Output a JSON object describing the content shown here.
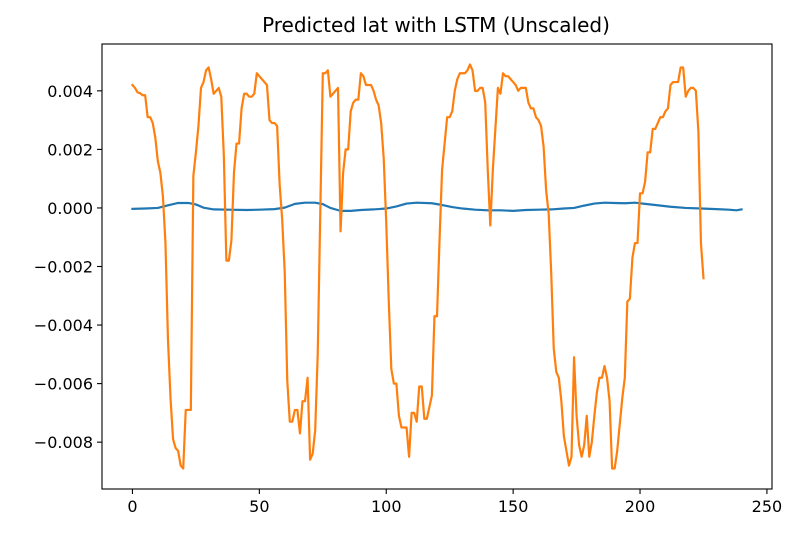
{
  "chart_data": {
    "type": "line",
    "title": "Predicted lat with LSTM (Unscaled)",
    "xlabel": "",
    "ylabel": "",
    "xlim": [
      -12,
      252
    ],
    "ylim": [
      -0.0096,
      0.0056
    ],
    "x_ticks": [
      0,
      50,
      100,
      150,
      200,
      250
    ],
    "x_tick_labels": [
      "0",
      "50",
      "100",
      "150",
      "200",
      "250"
    ],
    "y_ticks": [
      0.004,
      0.002,
      0.0,
      -0.002,
      -0.004,
      -0.006,
      -0.008
    ],
    "y_tick_labels": [
      "0.004",
      "0.002",
      "0.000",
      "−0.002",
      "−0.004",
      "−0.006",
      "−0.008"
    ],
    "grid": false,
    "legend": "none",
    "series": [
      {
        "color": "#1f77b4",
        "points": [
          [
            0,
            -3e-05
          ],
          [
            5,
            -2e-05
          ],
          [
            10,
            0.0
          ],
          [
            14,
            9e-05
          ],
          [
            18,
            0.00017
          ],
          [
            22,
            0.00017
          ],
          [
            25,
            0.00012
          ],
          [
            28,
            1e-05
          ],
          [
            32,
            -5e-05
          ],
          [
            38,
            -6e-05
          ],
          [
            45,
            -7e-05
          ],
          [
            50,
            -6e-05
          ],
          [
            56,
            -4e-05
          ],
          [
            60,
            1e-05
          ],
          [
            64,
            0.00014
          ],
          [
            68,
            0.00018
          ],
          [
            72,
            0.00018
          ],
          [
            75,
            0.00013
          ],
          [
            78,
            0.0
          ],
          [
            82,
            -0.0001
          ],
          [
            86,
            -0.0001
          ],
          [
            90,
            -7e-05
          ],
          [
            95,
            -5e-05
          ],
          [
            100,
            -2e-05
          ],
          [
            104,
            5e-05
          ],
          [
            108,
            0.00015
          ],
          [
            112,
            0.00018
          ],
          [
            118,
            0.00016
          ],
          [
            122,
            0.0001
          ],
          [
            126,
            3e-05
          ],
          [
            130,
            -2e-05
          ],
          [
            135,
            -6e-05
          ],
          [
            140,
            -8e-05
          ],
          [
            145,
            -8e-05
          ],
          [
            150,
            -0.0001
          ],
          [
            155,
            -7e-05
          ],
          [
            160,
            -6e-05
          ],
          [
            165,
            -5e-05
          ],
          [
            170,
            -2e-05
          ],
          [
            174,
            0.0
          ],
          [
            178,
            8e-05
          ],
          [
            182,
            0.00015
          ],
          [
            186,
            0.00018
          ],
          [
            190,
            0.00017
          ],
          [
            194,
            0.00016
          ],
          [
            198,
            0.00018
          ],
          [
            202,
            0.00014
          ],
          [
            206,
            0.0001
          ],
          [
            212,
            4e-05
          ],
          [
            218,
            0.0
          ],
          [
            224,
            -2e-05
          ],
          [
            230,
            -4e-05
          ],
          [
            235,
            -6e-05
          ],
          [
            238,
            -8e-05
          ],
          [
            240,
            -5e-05
          ]
        ]
      },
      {
        "color": "#ff7f0e",
        "points": [
          [
            0,
            0.0042
          ],
          [
            1,
            0.0041
          ],
          [
            2,
            0.00395
          ],
          [
            3,
            0.00392
          ],
          [
            4,
            0.00385
          ],
          [
            5,
            0.00385
          ],
          [
            6,
            0.0031
          ],
          [
            7,
            0.0031
          ],
          [
            8,
            0.0029
          ],
          [
            9,
            0.0024
          ],
          [
            10,
            0.0016
          ],
          [
            11,
            0.0012
          ],
          [
            12,
            0.0004
          ],
          [
            13,
            -0.0012
          ],
          [
            14,
            -0.0045
          ],
          [
            15,
            -0.0065
          ],
          [
            16,
            -0.0079
          ],
          [
            17,
            -0.0082
          ],
          [
            18,
            -0.0083
          ],
          [
            19,
            -0.0088
          ],
          [
            20,
            -0.0089
          ],
          [
            21,
            -0.0069
          ],
          [
            22,
            -0.0069
          ],
          [
            23,
            -0.0069
          ],
          [
            24,
            0.0011
          ],
          [
            25,
            0.0019
          ],
          [
            26,
            0.0028
          ],
          [
            27,
            0.0041
          ],
          [
            28,
            0.0043
          ],
          [
            29,
            0.0047
          ],
          [
            30,
            0.0048
          ],
          [
            31,
            0.0044
          ],
          [
            32,
            0.0039
          ],
          [
            33,
            0.004
          ],
          [
            34,
            0.0041
          ],
          [
            35,
            0.0038
          ],
          [
            36,
            0.0018
          ],
          [
            37,
            -0.0018
          ],
          [
            38,
            -0.0018
          ],
          [
            39,
            -0.0011
          ],
          [
            40,
            0.0012
          ],
          [
            41,
            0.0022
          ],
          [
            42,
            0.0022
          ],
          [
            43,
            0.0034
          ],
          [
            44,
            0.0039
          ],
          [
            45,
            0.0039
          ],
          [
            46,
            0.0038
          ],
          [
            47,
            0.0038
          ],
          [
            48,
            0.0039
          ],
          [
            49,
            0.0046
          ],
          [
            50,
            0.0045
          ],
          [
            51,
            0.0044
          ],
          [
            52,
            0.0043
          ],
          [
            53,
            0.0042
          ],
          [
            54,
            0.003
          ],
          [
            55,
            0.0029
          ],
          [
            56,
            0.0029
          ],
          [
            57,
            0.0028
          ],
          [
            58,
            0.0008
          ],
          [
            59,
            -0.0004
          ],
          [
            60,
            -0.0022
          ],
          [
            61,
            -0.0059
          ],
          [
            62,
            -0.0073
          ],
          [
            63,
            -0.0073
          ],
          [
            64,
            -0.0069
          ],
          [
            65,
            -0.0069
          ],
          [
            66,
            -0.0077
          ],
          [
            67,
            -0.0066
          ],
          [
            68,
            -0.0066
          ],
          [
            69,
            -0.0058
          ],
          [
            70,
            -0.0086
          ],
          [
            71,
            -0.0084
          ],
          [
            72,
            -0.0076
          ],
          [
            73,
            -0.005
          ],
          [
            74,
            -0.0002
          ],
          [
            75,
            0.0046
          ],
          [
            76,
            0.0046
          ],
          [
            77,
            0.0047
          ],
          [
            78,
            0.0038
          ],
          [
            79,
            0.0039
          ],
          [
            80,
            0.004
          ],
          [
            81,
            0.0041
          ],
          [
            82,
            -0.0008
          ],
          [
            83,
            0.0012
          ],
          [
            84,
            0.002
          ],
          [
            85,
            0.002
          ],
          [
            86,
            0.0033
          ],
          [
            87,
            0.0036
          ],
          [
            88,
            0.0037
          ],
          [
            89,
            0.0037
          ],
          [
            90,
            0.0046
          ],
          [
            91,
            0.0045
          ],
          [
            92,
            0.0042
          ],
          [
            93,
            0.0042
          ],
          [
            94,
            0.0042
          ],
          [
            95,
            0.004
          ],
          [
            96,
            0.0037
          ],
          [
            97,
            0.0035
          ],
          [
            98,
            0.0029
          ],
          [
            99,
            0.0017
          ],
          [
            100,
            -0.0005
          ],
          [
            101,
            -0.0032
          ],
          [
            102,
            -0.0055
          ],
          [
            103,
            -0.006
          ],
          [
            104,
            -0.006
          ],
          [
            105,
            -0.0071
          ],
          [
            106,
            -0.0075
          ],
          [
            107,
            -0.0075
          ],
          [
            108,
            -0.0075
          ],
          [
            109,
            -0.0085
          ],
          [
            110,
            -0.007
          ],
          [
            111,
            -0.007
          ],
          [
            112,
            -0.0073
          ],
          [
            113,
            -0.0061
          ],
          [
            114,
            -0.0061
          ],
          [
            115,
            -0.0072
          ],
          [
            116,
            -0.0072
          ],
          [
            117,
            -0.0068
          ],
          [
            118,
            -0.0064
          ],
          [
            119,
            -0.0037
          ],
          [
            120,
            -0.0037
          ],
          [
            121,
            -0.0011
          ],
          [
            122,
            0.0013
          ],
          [
            123,
            0.0022
          ],
          [
            124,
            0.0031
          ],
          [
            125,
            0.0031
          ],
          [
            126,
            0.0033
          ],
          [
            127,
            0.004
          ],
          [
            128,
            0.0044
          ],
          [
            129,
            0.0046
          ],
          [
            130,
            0.0046
          ],
          [
            131,
            0.0046
          ],
          [
            132,
            0.0047
          ],
          [
            133,
            0.0049
          ],
          [
            134,
            0.0047
          ],
          [
            135,
            0.004
          ],
          [
            136,
            0.004
          ],
          [
            137,
            0.0041
          ],
          [
            138,
            0.0041
          ],
          [
            139,
            0.0036
          ],
          [
            140,
            0.0013
          ],
          [
            141,
            -0.0006
          ],
          [
            142,
            0.0013
          ],
          [
            143,
            0.0027
          ],
          [
            144,
            0.0041
          ],
          [
            145,
            0.0039
          ],
          [
            146,
            0.0046
          ],
          [
            147,
            0.0045
          ],
          [
            148,
            0.0045
          ],
          [
            149,
            0.0044
          ],
          [
            150,
            0.0043
          ],
          [
            151,
            0.0042
          ],
          [
            152,
            0.004
          ],
          [
            153,
            0.0041
          ],
          [
            154,
            0.0041
          ],
          [
            155,
            0.0041
          ],
          [
            156,
            0.0036
          ],
          [
            157,
            0.0034
          ],
          [
            158,
            0.0034
          ],
          [
            159,
            0.0031
          ],
          [
            160,
            0.003
          ],
          [
            161,
            0.0028
          ],
          [
            162,
            0.0021
          ],
          [
            163,
            0.0006
          ],
          [
            164,
            -0.0002
          ],
          [
            165,
            -0.0022
          ],
          [
            166,
            -0.0048
          ],
          [
            167,
            -0.0056
          ],
          [
            168,
            -0.0058
          ],
          [
            169,
            -0.0066
          ],
          [
            170,
            -0.0078
          ],
          [
            171,
            -0.0083
          ],
          [
            172,
            -0.0088
          ],
          [
            173,
            -0.0085
          ],
          [
            174,
            -0.0051
          ],
          [
            175,
            -0.0071
          ],
          [
            176,
            -0.0081
          ],
          [
            177,
            -0.0085
          ],
          [
            178,
            -0.0081
          ],
          [
            179,
            -0.0071
          ],
          [
            180,
            -0.0085
          ],
          [
            181,
            -0.008
          ],
          [
            182,
            -0.0071
          ],
          [
            183,
            -0.0063
          ],
          [
            184,
            -0.0058
          ],
          [
            185,
            -0.0058
          ],
          [
            186,
            -0.0054
          ],
          [
            187,
            -0.0058
          ],
          [
            188,
            -0.0066
          ],
          [
            189,
            -0.0089
          ],
          [
            190,
            -0.0089
          ],
          [
            191,
            -0.0083
          ],
          [
            192,
            -0.0074
          ],
          [
            193,
            -0.0065
          ],
          [
            194,
            -0.0058
          ],
          [
            195,
            -0.0032
          ],
          [
            196,
            -0.0031
          ],
          [
            197,
            -0.0017
          ],
          [
            198,
            -0.0012
          ],
          [
            199,
            -0.0012
          ],
          [
            200,
            0.0005
          ],
          [
            201,
            0.0005
          ],
          [
            202,
            0.0009
          ],
          [
            203,
            0.0019
          ],
          [
            204,
            0.0019
          ],
          [
            205,
            0.0027
          ],
          [
            206,
            0.0027
          ],
          [
            207,
            0.0029
          ],
          [
            208,
            0.0031
          ],
          [
            209,
            0.0031
          ],
          [
            210,
            0.0033
          ],
          [
            211,
            0.0034
          ],
          [
            212,
            0.0042
          ],
          [
            213,
            0.0043
          ],
          [
            214,
            0.0043
          ],
          [
            215,
            0.0043
          ],
          [
            216,
            0.0048
          ],
          [
            217,
            0.0048
          ],
          [
            218,
            0.0038
          ],
          [
            219,
            0.004
          ],
          [
            220,
            0.0041
          ],
          [
            221,
            0.0041
          ],
          [
            222,
            0.004
          ],
          [
            223,
            0.0026
          ],
          [
            224,
            -0.0012
          ],
          [
            225,
            -0.0024
          ]
        ]
      }
    ]
  }
}
